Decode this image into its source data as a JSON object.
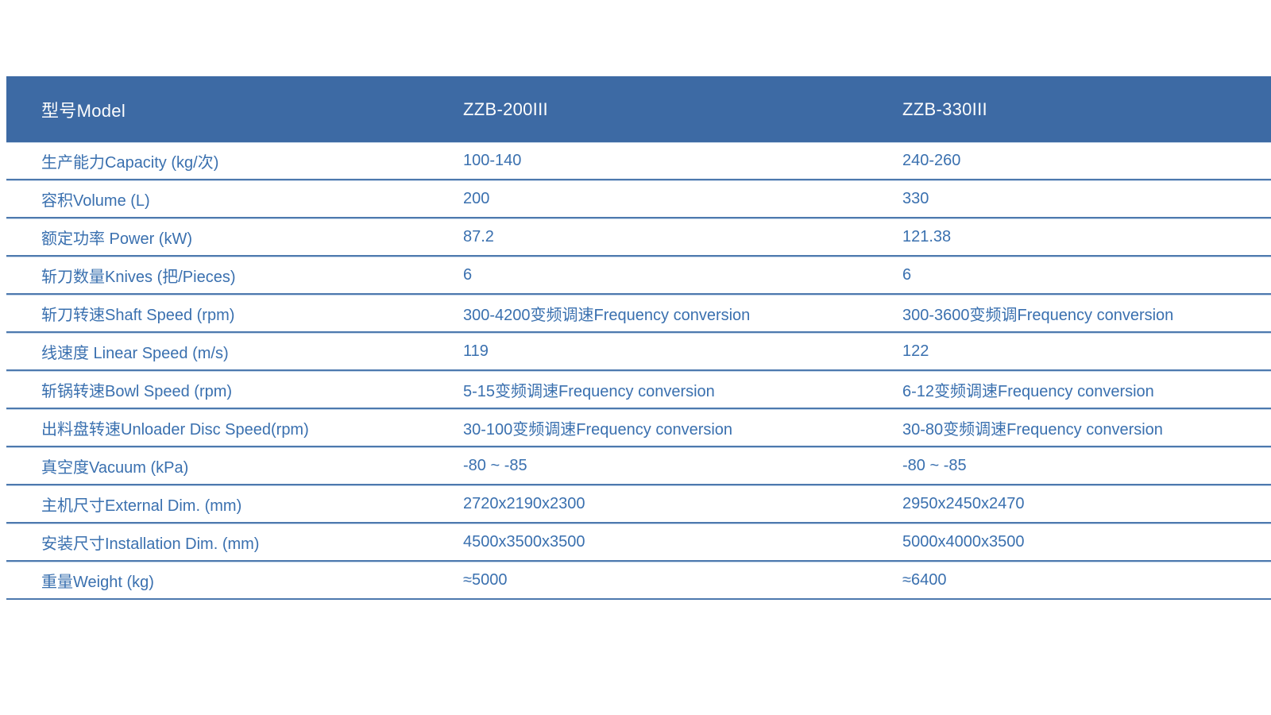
{
  "table": {
    "header": {
      "model_label": "型号Model",
      "model_1": "ZZB-200III",
      "model_2": "ZZB-330III"
    },
    "rows": [
      {
        "label": "生产能力Capacity (kg/次)",
        "v1": "100-140",
        "v2": "240-260"
      },
      {
        "label": "容积Volume (L)",
        "v1": "200",
        "v2": "330"
      },
      {
        "label": "额定功率 Power (kW)",
        "v1": "87.2",
        "v2": "121.38"
      },
      {
        "label": "斩刀数量Knives (把/Pieces)",
        "v1": "6",
        "v2": "6"
      },
      {
        "label": "斩刀转速Shaft Speed (rpm)",
        "v1": "300-4200变频调速Frequency conversion",
        "v2": "300-3600变频调Frequency conversion"
      },
      {
        "label": "线速度 Linear Speed (m/s)",
        "v1": "119",
        "v2": "122"
      },
      {
        "label": "斩锅转速Bowl Speed (rpm)",
        "v1": "5-15变频调速Frequency conversion",
        "v2": "6-12变频调速Frequency conversion"
      },
      {
        "label": "出料盘转速Unloader Disc Speed(rpm)",
        "v1": "30-100变频调速Frequency conversion",
        "v2": "30-80变频调速Frequency conversion"
      },
      {
        "label": "真空度Vacuum (kPa)",
        "v1": "-80 ~ -85",
        "v2": "-80 ~ -85"
      },
      {
        "label": "主机尺寸External Dim. (mm)",
        "v1": "2720x2190x2300",
        "v2": "2950x2450x2470"
      },
      {
        "label": "安装尺寸Installation Dim. (mm)",
        "v1": "4500x3500x3500",
        "v2": "5000x4000x3500"
      },
      {
        "label": "重量Weight (kg)",
        "v1": "≈5000",
        "v2": "≈6400"
      }
    ]
  },
  "colors": {
    "header_bg": "#3d6aa4",
    "header_text": "#fdfdfd",
    "body_text": "#3a70af",
    "divider_dark": "#4d79ae",
    "divider_light": "#c8d8ea",
    "page_bg": "#ffffff"
  }
}
